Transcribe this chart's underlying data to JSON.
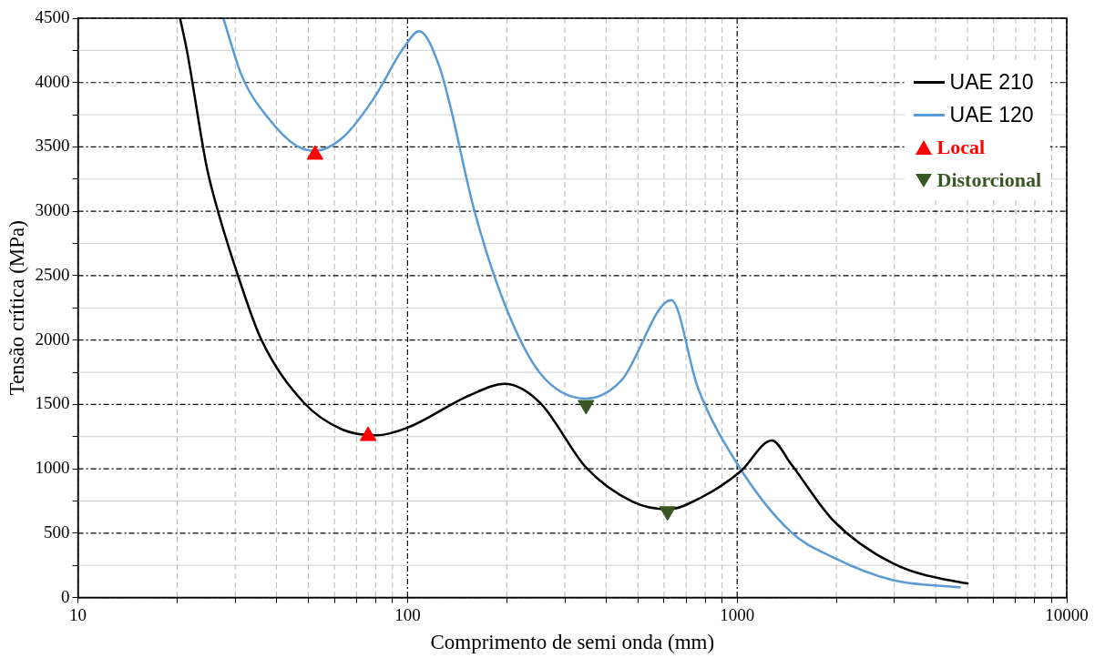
{
  "chart_data": {
    "type": "line",
    "xlabel": "Comprimento de semi onda (mm)",
    "ylabel": "Tensão crítica (MPa)",
    "log": "x",
    "grid": true,
    "legend": "top right",
    "xlim": [
      10,
      10000
    ],
    "ylim": [
      0,
      4500
    ],
    "xticks": [
      10,
      {
        "value": 20,
        "label": null
      },
      {
        "value": 30,
        "label": null
      },
      {
        "value": 40,
        "label": null
      },
      {
        "value": 50,
        "label": null
      },
      {
        "value": 60,
        "label": null
      },
      {
        "value": 70,
        "label": null
      },
      {
        "value": 80,
        "label": null
      },
      {
        "value": 90,
        "label": null
      },
      100,
      {
        "value": 200,
        "label": null
      },
      {
        "value": 300,
        "label": null
      },
      {
        "value": 400,
        "label": null
      },
      {
        "value": 500,
        "label": null
      },
      {
        "value": 600,
        "label": null
      },
      {
        "value": 700,
        "label": null
      },
      {
        "value": 800,
        "label": null
      },
      {
        "value": 900,
        "label": null
      },
      1000,
      {
        "value": 2000,
        "label": null
      },
      {
        "value": 3000,
        "label": null
      },
      {
        "value": 4000,
        "label": null
      },
      {
        "value": 5000,
        "label": null
      },
      {
        "value": 6000,
        "label": null
      },
      {
        "value": 7000,
        "label": null
      },
      {
        "value": 8000,
        "label": null
      },
      {
        "value": 9000,
        "label": null
      },
      10000
    ],
    "yticks": [
      0,
      {
        "value": 250,
        "label": null
      },
      500,
      {
        "value": 750,
        "label": null
      },
      1000,
      {
        "value": 1250,
        "label": null
      },
      1500,
      {
        "value": 1750,
        "label": null
      },
      2000,
      {
        "value": 2250,
        "label": null
      },
      2500,
      {
        "value": 2750,
        "label": null
      },
      3000,
      {
        "value": 3250,
        "label": null
      },
      3500,
      {
        "value": 3750,
        "label": null
      },
      4000,
      {
        "value": 4250,
        "label": null
      },
      4500
    ],
    "series": [
      {
        "name": "UAE 210",
        "type": "line",
        "color": "#000000",
        "marker": "none",
        "x": [
          20.4,
          21.4,
          24.6,
          26.7,
          30.5,
          35.9,
          48.4,
          63.4,
          80.5,
          100,
          154,
          197,
          252,
          348,
          481,
          615,
          781,
          1024,
          1274,
          1455,
          1947,
          2974,
          4822,
          5000
        ],
        "values": [
          4500,
          4250,
          3340,
          2985,
          2510,
          2010,
          1515,
          1305,
          1260,
          1320,
          1570,
          1660,
          1515,
          1010,
          745,
          685,
          780,
          980,
          1220,
          1040,
          605,
          265,
          115,
          110
        ]
      },
      {
        "name": "UAE 120",
        "type": "line",
        "color": "#5b9bd5",
        "marker": "none",
        "x": [
          27.6,
          31.5,
          37.9,
          45.9,
          52.4,
          63.4,
          78.4,
          97.6,
          108.5,
          124.7,
          135,
          158,
          197,
          252,
          348,
          445,
          631,
          760,
          1000,
          1455,
          1947,
          2974,
          4730
        ],
        "values": [
          4500,
          4045,
          3720,
          3510,
          3470,
          3570,
          3865,
          4275,
          4400,
          4130,
          3810,
          3045,
          2280,
          1745,
          1545,
          1685,
          2310,
          1630,
          1040,
          510,
          315,
          135,
          80
        ]
      },
      {
        "name": "Local",
        "type": "scatter",
        "color": "#ff0000",
        "marker": "triangle",
        "x": [
          52.4,
          75.9
        ],
        "values": [
          3440,
          1255
        ]
      },
      {
        "name": "Distorcional",
        "type": "scatter",
        "color": "#375623",
        "marker": "triangle-down",
        "x": [
          348,
          615
        ],
        "values": [
          1495,
          670
        ]
      }
    ]
  }
}
